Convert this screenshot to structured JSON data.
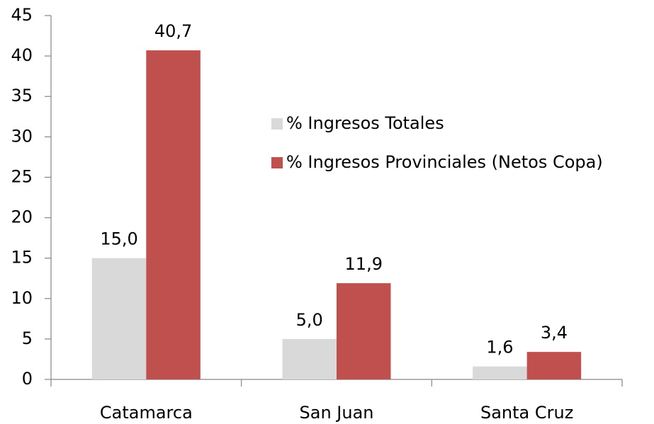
{
  "chart_data": {
    "type": "bar",
    "categories": [
      "Catamarca",
      "San Juan",
      "Santa Cruz"
    ],
    "series": [
      {
        "name": "% Ingresos Totales",
        "color": "#d9d9d9",
        "values": [
          15.0,
          5.0,
          1.6
        ],
        "value_labels": [
          "15,0",
          "5,0",
          "1,6"
        ]
      },
      {
        "name": "% Ingresos Provinciales (Netos Copa)",
        "color": "#c0504d",
        "values": [
          40.7,
          11.9,
          3.4
        ],
        "value_labels": [
          "40,7",
          "11,9",
          "3,4"
        ]
      }
    ],
    "ylim": [
      0,
      45
    ],
    "yticks": [
      0,
      5,
      10,
      15,
      20,
      25,
      30,
      35,
      40,
      45
    ],
    "grid": false,
    "legend": "center"
  }
}
